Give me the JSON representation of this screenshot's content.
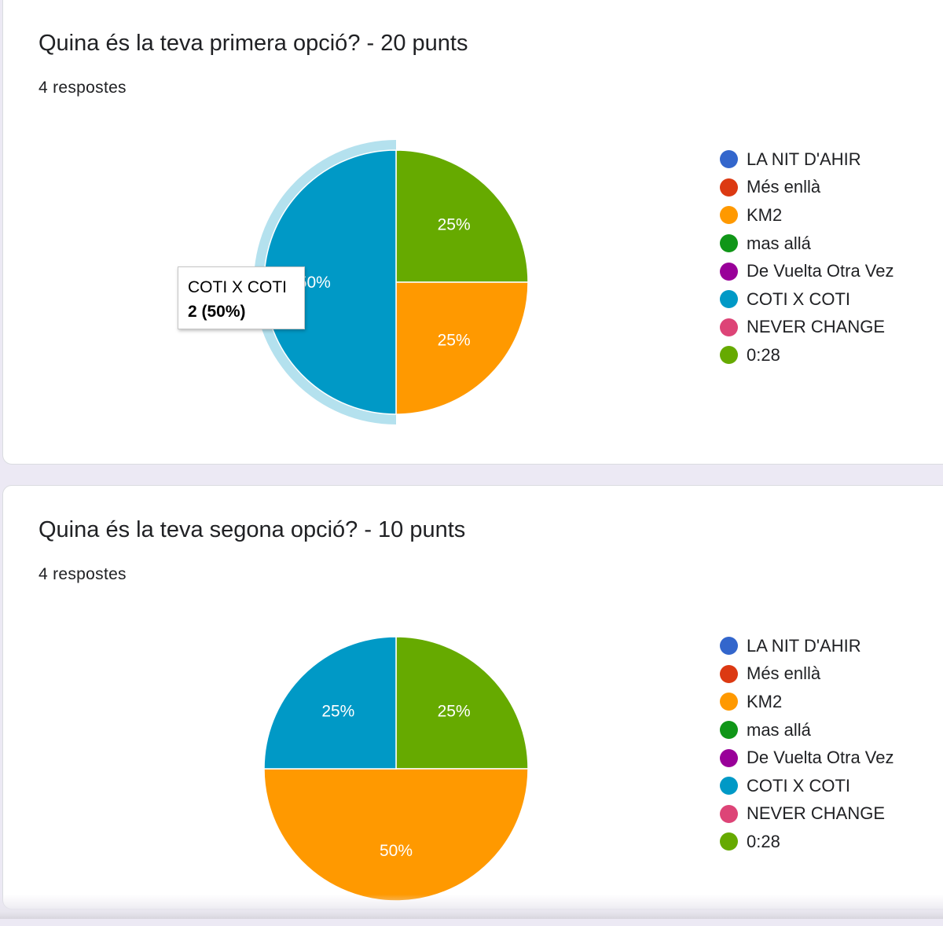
{
  "colors": {
    "LA NIT D'AHIR": "#3366cc",
    "Més enllà": "#dc3912",
    "KM2": "#ff9900",
    "mas allá": "#109618",
    "De Vuelta Otra Vez": "#990099",
    "COTI X COTI": "#0099c6",
    "NEVER CHANGE": "#dd4477",
    "0:28": "#66aa00",
    "highlight": "#b4e1ee"
  },
  "chart_data": [
    {
      "type": "pie",
      "title": "Quina és la teva primera opció? - 20 punts",
      "subtitle": "4 respostes",
      "legend_position": "right",
      "legend": [
        "LA NIT D'AHIR",
        "Més enllà",
        "KM2",
        "mas allá",
        "De Vuelta Otra Vez",
        "COTI X COTI",
        "NEVER CHANGE",
        "0:28"
      ],
      "slices": [
        {
          "label": "0:28",
          "value": 1,
          "percent_label": "25%"
        },
        {
          "label": "KM2",
          "value": 1,
          "percent_label": "25%"
        },
        {
          "label": "COTI X COTI",
          "value": 2,
          "percent_label": "50%"
        }
      ],
      "highlighted_slice": "COTI X COTI",
      "tooltip": {
        "label": "COTI X COTI",
        "value": "2 (50%)"
      }
    },
    {
      "type": "pie",
      "title": "Quina és la teva segona opció? - 10 punts",
      "subtitle": "4 respostes",
      "legend_position": "right",
      "legend": [
        "LA NIT D'AHIR",
        "Més enllà",
        "KM2",
        "mas allá",
        "De Vuelta Otra Vez",
        "COTI X COTI",
        "NEVER CHANGE",
        "0:28"
      ],
      "slices": [
        {
          "label": "0:28",
          "value": 1,
          "percent_label": "25%"
        },
        {
          "label": "KM2",
          "value": 2,
          "percent_label": "50%"
        },
        {
          "label": "COTI X COTI",
          "value": 1,
          "percent_label": "25%"
        }
      ]
    }
  ]
}
